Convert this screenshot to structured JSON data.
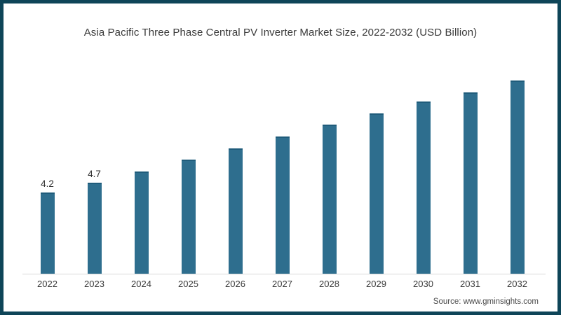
{
  "page": {
    "background": "#ffffff",
    "border_color": "#0e4558"
  },
  "chart_data": {
    "type": "bar",
    "title": "Asia Pacific Three Phase Central PV Inverter Market Size, 2022-2032 (USD Billion)",
    "categories": [
      "2022",
      "2023",
      "2024",
      "2025",
      "2026",
      "2027",
      "2028",
      "2029",
      "2030",
      "2031",
      "2032"
    ],
    "values": [
      4.2,
      4.7,
      5.3,
      5.9,
      6.5,
      7.1,
      7.7,
      8.3,
      8.9,
      9.4,
      10.0
    ],
    "bar_labels": [
      "4.2",
      "4.7",
      "",
      "",
      "",
      "",
      "",
      "",
      "",
      "",
      ""
    ],
    "bar_color": "#2e6e8e",
    "bar_top_color": "#1f5c7b",
    "xlabel": "",
    "ylabel": "",
    "ylim": [
      0,
      10.5
    ],
    "grid": false,
    "legend": false,
    "axis_line_color": "#d8d8d8"
  },
  "footer": {
    "source_label": "Source: www.gminsights.com"
  }
}
